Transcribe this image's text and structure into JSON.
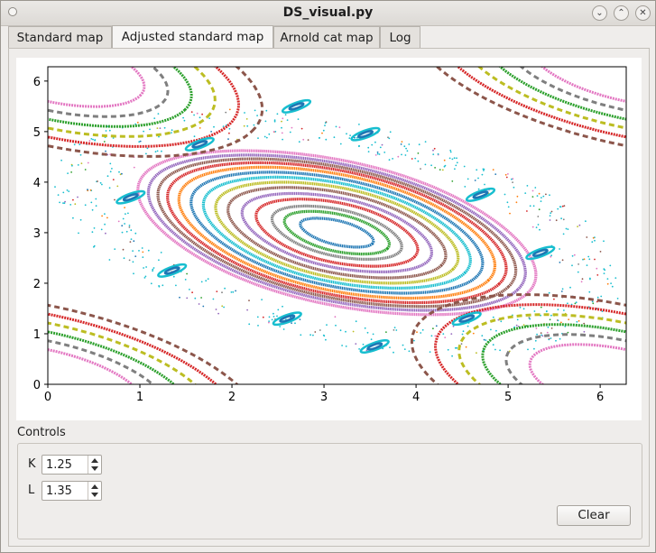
{
  "window": {
    "title": "DS_visual.py"
  },
  "tabs": [
    {
      "label": "Standard map",
      "active": false
    },
    {
      "label": "Adjusted standard map",
      "active": true
    },
    {
      "label": "Arnold cat map",
      "active": false
    },
    {
      "label": "Log",
      "active": false
    }
  ],
  "chart_data": {
    "type": "scatter",
    "title": "",
    "xlabel": "",
    "ylabel": "",
    "xlim": [
      0,
      6.283
    ],
    "ylim": [
      0,
      6.283
    ],
    "x_ticks": [
      "0",
      "1",
      "2",
      "3",
      "4",
      "5",
      "6"
    ],
    "y_ticks": [
      "0",
      "1",
      "2",
      "3",
      "4",
      "5",
      "6"
    ],
    "grid": false,
    "description": "Phase-space orbits of the adjusted standard map: nested closed invariant curves around (3.14, 3.0) surrounded by island chains and a chaotic sea",
    "palette": [
      "#1f77b4",
      "#ff7f0e",
      "#2ca02c",
      "#d62728",
      "#9467bd",
      "#8c564b",
      "#e377c2",
      "#7f7f7f",
      "#bcbd22",
      "#17becf"
    ],
    "central_curves": [
      {
        "a": 0.42,
        "b": 0.22,
        "color": "#1f77b4"
      },
      {
        "a": 0.6,
        "b": 0.34,
        "color": "#2ca02c"
      },
      {
        "a": 0.74,
        "b": 0.43,
        "color": "#7f7f7f"
      },
      {
        "a": 0.92,
        "b": 0.55,
        "color": "#d62728"
      },
      {
        "a": 1.08,
        "b": 0.64,
        "color": "#9467bd"
      },
      {
        "a": 1.24,
        "b": 0.74,
        "color": "#8c564b"
      },
      {
        "a": 1.38,
        "b": 0.83,
        "color": "#bcbd22"
      },
      {
        "a": 1.52,
        "b": 0.91,
        "color": "#17becf"
      },
      {
        "a": 1.66,
        "b": 0.99,
        "color": "#1f77b4"
      },
      {
        "a": 1.8,
        "b": 1.07,
        "color": "#ff7f0e"
      },
      {
        "a": 1.93,
        "b": 1.14,
        "color": "#d62728"
      },
      {
        "a": 2.04,
        "b": 1.2,
        "color": "#8c564b"
      },
      {
        "a": 2.15,
        "b": 1.26,
        "color": "#9467bd"
      },
      {
        "a": 2.27,
        "b": 1.33,
        "color": "#e377c2"
      }
    ]
  },
  "controls": {
    "group_label": "Controls",
    "k_label": "K",
    "k_value": "1.25",
    "l_label": "L",
    "l_value": "1.35",
    "clear_label": "Clear"
  }
}
